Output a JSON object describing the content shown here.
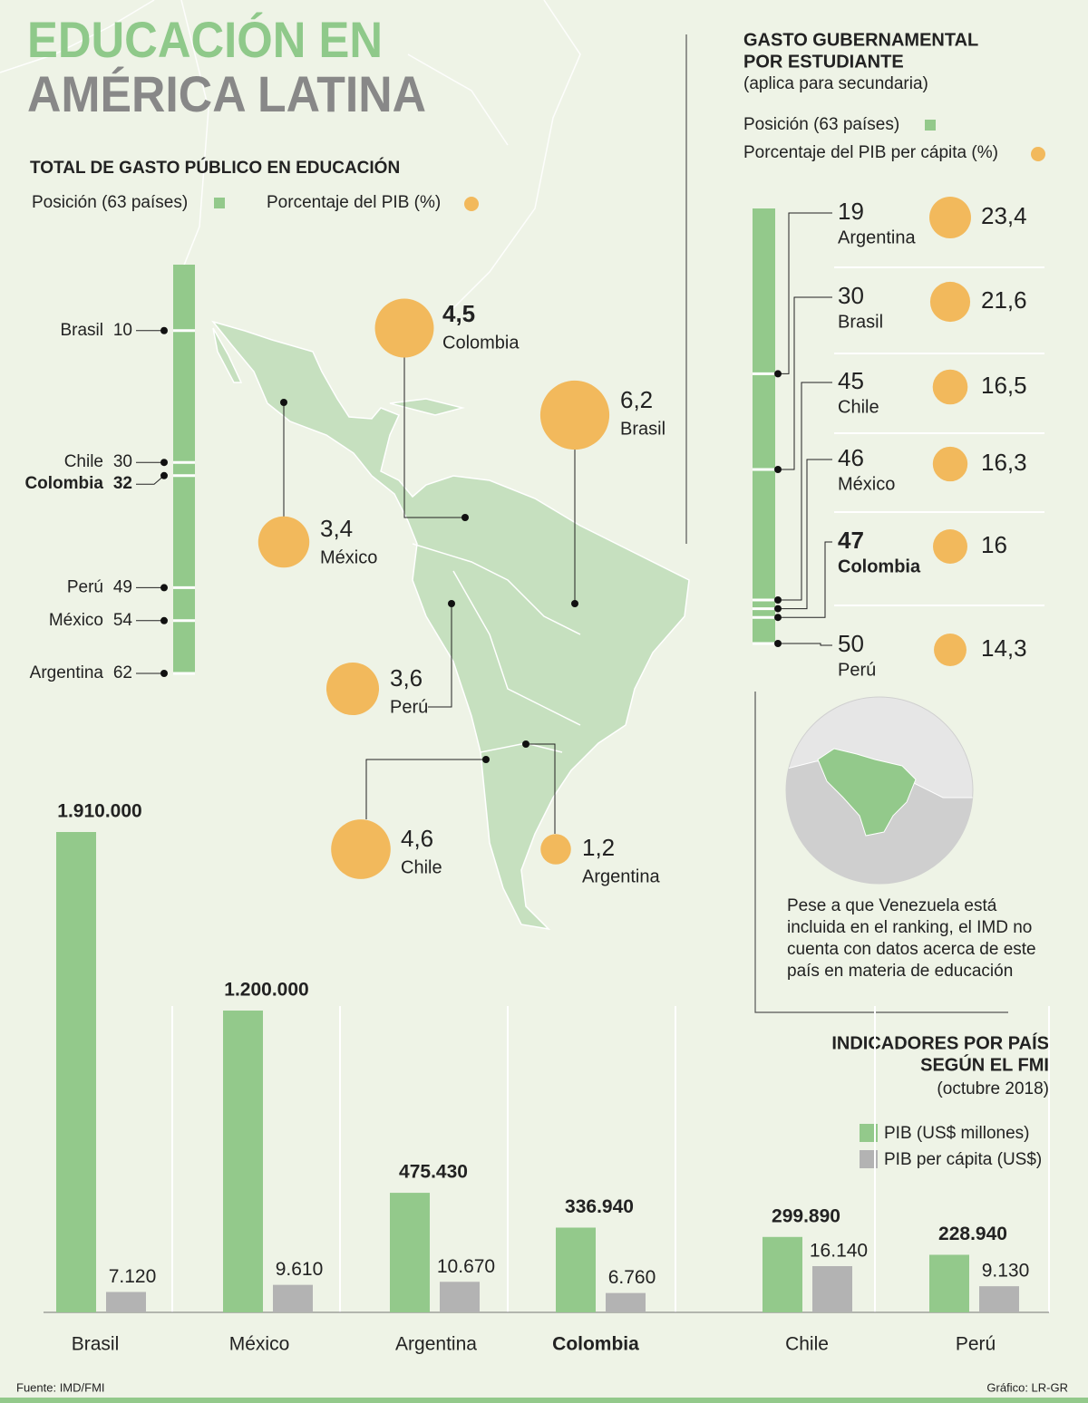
{
  "title": [
    "EDUCACIÓN EN",
    "AMÉRICA LATINA"
  ],
  "chart_data": [
    {
      "type": "ranking",
      "title": "TOTAL DE GASTO PÚBLICO EN EDUCACIÓN",
      "categories": [
        "Brasil",
        "Chile",
        "Colombia",
        "Perú",
        "México",
        "Argentina"
      ],
      "ylim": [
        0,
        62
      ],
      "series": [
        {
          "name": "Posición (63 países)",
          "color": "#93c98b",
          "values": [
            10,
            30,
            32,
            49,
            54,
            62
          ]
        },
        {
          "name": "Porcentaje del PIB (%)",
          "color": "#f2b95c",
          "values": [
            6.2,
            4.6,
            4.5,
            3.6,
            3.4,
            1.2
          ],
          "value_labels": [
            "6,2",
            "4,6",
            "4,5",
            "3,6",
            "3,4",
            "1,2"
          ]
        }
      ]
    },
    {
      "type": "ranking",
      "title": [
        "GASTO GUBERNAMENTAL",
        "POR ESTUDIANTE"
      ],
      "subtitle": "(aplica para secundaria)",
      "categories": [
        "Argentina",
        "Brasil",
        "Chile",
        "México",
        "Colombia",
        "Perú"
      ],
      "ylim": [
        0,
        50
      ],
      "series": [
        {
          "name": "Posición (63 países)",
          "color": "#93c98b",
          "values": [
            19,
            30,
            45,
            46,
            47,
            50
          ]
        },
        {
          "name": "Porcentaje del PIB per cápita (%)",
          "color": "#f2b95c",
          "values": [
            23.4,
            21.6,
            16.5,
            16.3,
            16,
            14.3
          ],
          "value_labels": [
            "23,4",
            "21,6",
            "16,5",
            "16,3",
            "16",
            "14,3"
          ]
        }
      ]
    },
    {
      "type": "bar",
      "title": [
        "INDICADORES POR PAÍS",
        "SEGÚN EL FMI"
      ],
      "subtitle": "(octubre 2018)",
      "categories": [
        "Brasil",
        "México",
        "Argentina",
        "Colombia",
        "Chile",
        "Perú"
      ],
      "series": [
        {
          "name": "PIB (US$ millones)",
          "color": "#93c98b",
          "values": [
            1910000,
            1200000,
            475430,
            336940,
            299890,
            228940
          ],
          "value_labels": [
            "1.910.000",
            "1.200.000",
            "475.430",
            "336.940",
            "299.890",
            "228.940"
          ]
        },
        {
          "name": "PIB per cápita (US$)",
          "color": "#b3b3b3",
          "values": [
            7120,
            9610,
            10670,
            6760,
            16140,
            9130
          ],
          "value_labels": [
            "7.120",
            "9.610",
            "10.670",
            "6.760",
            "16.140",
            "9.130"
          ]
        }
      ]
    }
  ],
  "note": "Pese a que Venezuela está incluida en el ranking, el IMD no cuenta con datos acerca de este país en materia de educación",
  "source": "Fuente: IMD/FMI",
  "credit": "Gráfico: LR-GR"
}
